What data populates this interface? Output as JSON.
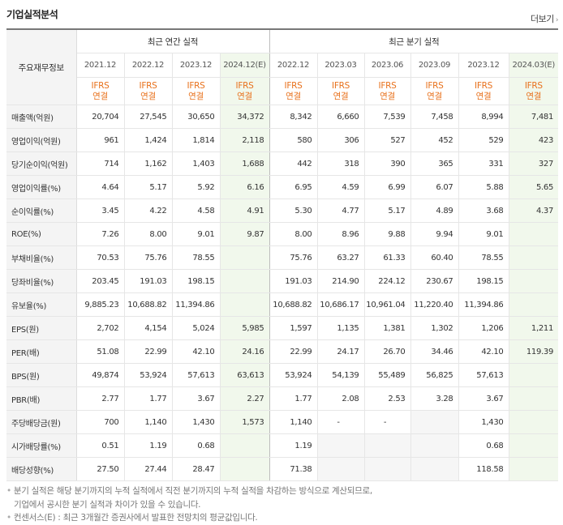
{
  "title": "기업실적분석",
  "more_label": "더보기",
  "more_icon": "chevron-right-icon",
  "header": {
    "row_label": "주요재무정보",
    "annual_group": "최근 연간 실적",
    "quarter_group": "최근 분기 실적",
    "annual_periods": [
      "2021.12",
      "2022.12",
      "2023.12",
      "2024.12(E)"
    ],
    "quarter_periods": [
      "2022.12",
      "2023.03",
      "2023.06",
      "2023.09",
      "2023.12",
      "2024.03(E)"
    ],
    "standard_top": "IFRS",
    "standard_bottom": "연결"
  },
  "rows": [
    {
      "label": "매출액(억원)",
      "annual": [
        "20,704",
        "27,545",
        "30,650",
        "34,372"
      ],
      "quarter": [
        "8,342",
        "6,660",
        "7,539",
        "7,458",
        "8,994",
        "7,481"
      ]
    },
    {
      "label": "영업이익(억원)",
      "annual": [
        "961",
        "1,424",
        "1,814",
        "2,118"
      ],
      "quarter": [
        "580",
        "306",
        "527",
        "452",
        "529",
        "423"
      ]
    },
    {
      "label": "당기순이익(억원)",
      "annual": [
        "714",
        "1,162",
        "1,403",
        "1,688"
      ],
      "quarter": [
        "442",
        "318",
        "390",
        "365",
        "331",
        "327"
      ]
    },
    {
      "label": "영업이익률(%)",
      "annual": [
        "4.64",
        "5.17",
        "5.92",
        "6.16"
      ],
      "quarter": [
        "6.95",
        "4.59",
        "6.99",
        "6.07",
        "5.88",
        "5.65"
      ]
    },
    {
      "label": "순이익률(%)",
      "annual": [
        "3.45",
        "4.22",
        "4.58",
        "4.91"
      ],
      "quarter": [
        "5.30",
        "4.77",
        "5.17",
        "4.89",
        "3.68",
        "4.37"
      ]
    },
    {
      "label": "ROE(%)",
      "annual": [
        "7.26",
        "8.00",
        "9.01",
        "9.87"
      ],
      "quarter": [
        "8.00",
        "8.96",
        "9.88",
        "9.94",
        "9.01",
        ""
      ]
    },
    {
      "label": "부채비율(%)",
      "annual": [
        "70.53",
        "75.76",
        "78.55",
        ""
      ],
      "quarter": [
        "75.76",
        "63.27",
        "61.33",
        "60.40",
        "78.55",
        ""
      ]
    },
    {
      "label": "당좌비율(%)",
      "annual": [
        "203.45",
        "191.03",
        "198.15",
        ""
      ],
      "quarter": [
        "191.03",
        "214.90",
        "224.12",
        "230.67",
        "198.15",
        ""
      ]
    },
    {
      "label": "유보율(%)",
      "annual": [
        "9,885.23",
        "10,688.82",
        "11,394.86",
        ""
      ],
      "quarter": [
        "10,688.82",
        "10,686.17",
        "10,961.04",
        "11,220.40",
        "11,394.86",
        ""
      ]
    },
    {
      "label": "EPS(원)",
      "annual": [
        "2,702",
        "4,154",
        "5,024",
        "5,985"
      ],
      "quarter": [
        "1,597",
        "1,135",
        "1,381",
        "1,302",
        "1,206",
        "1,211"
      ]
    },
    {
      "label": "PER(배)",
      "annual": [
        "51.08",
        "22.99",
        "42.10",
        "24.16"
      ],
      "quarter": [
        "22.99",
        "24.17",
        "26.70",
        "34.46",
        "42.10",
        "119.39"
      ]
    },
    {
      "label": "BPS(원)",
      "annual": [
        "49,874",
        "53,924",
        "57,613",
        "63,613"
      ],
      "quarter": [
        "53,924",
        "54,139",
        "55,489",
        "56,825",
        "57,613",
        ""
      ]
    },
    {
      "label": "PBR(배)",
      "annual": [
        "2.77",
        "1.77",
        "3.67",
        "2.27"
      ],
      "quarter": [
        "1.77",
        "2.08",
        "2.53",
        "3.28",
        "3.67",
        ""
      ]
    },
    {
      "label": "주당배당금(원)",
      "annual": [
        "700",
        "1,140",
        "1,430",
        "1,573"
      ],
      "quarter": [
        "1,140",
        "-",
        "-",
        "",
        "1,430",
        ""
      ]
    },
    {
      "label": "시가배당률(%)",
      "annual": [
        "0.51",
        "1.19",
        "0.68",
        ""
      ],
      "quarter": [
        "1.19",
        "",
        "",
        "",
        "0.68",
        ""
      ]
    },
    {
      "label": "배당성향(%)",
      "annual": [
        "27.50",
        "27.44",
        "28.47",
        ""
      ],
      "quarter": [
        "71.38",
        "",
        "",
        "",
        "118.58",
        ""
      ]
    }
  ],
  "footnotes": [
    "분기 실적은 해당 분기까지의 누적 실적에서 직전 분기까지의 누적 실적을 차감하는 방식으로 계산되므로,",
    "기업에서 공시한 분기 실적과 차이가 있을 수 있습니다.",
    "컨센서스(E) : 최근 3개월간 증권사에서 발표한 전망치의 평균값입니다."
  ]
}
